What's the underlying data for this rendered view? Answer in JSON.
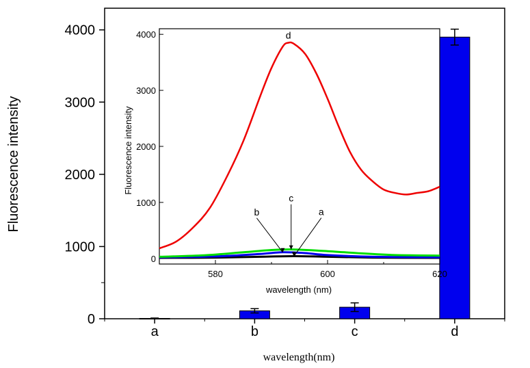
{
  "chart_data": [
    {
      "type": "bar",
      "categories": [
        "a",
        "b",
        "c",
        "d"
      ],
      "values": [
        5,
        110,
        160,
        3900
      ],
      "errors": [
        5,
        30,
        60,
        110
      ],
      "xlabel": "wavelength(nm)",
      "ylabel": "Fluorescence intensity",
      "ylim": [
        0,
        4300
      ],
      "yticks": [
        0,
        1000,
        2000,
        3000,
        4000
      ],
      "grid": false,
      "colors": {
        "bar": "#0000ee",
        "edge": "#000000"
      }
    },
    {
      "type": "line",
      "xlabel": "wavelength (nm)",
      "ylabel": "Fluorescence intensity",
      "xlim": [
        570,
        620
      ],
      "ylim": [
        -100,
        4100
      ],
      "xticks": [
        580,
        600,
        620
      ],
      "yticks": [
        0,
        1000,
        2000,
        3000,
        4000
      ],
      "grid": false,
      "series": [
        {
          "name": "a",
          "color": "#000000",
          "x": [
            570,
            580,
            588,
            594,
            600,
            608,
            620
          ],
          "y": [
            10,
            15,
            30,
            40,
            30,
            15,
            10
          ]
        },
        {
          "name": "b",
          "color": "#0000ee",
          "x": [
            570,
            580,
            588,
            592,
            596,
            600,
            608,
            620
          ],
          "y": [
            20,
            35,
            80,
            110,
            95,
            60,
            30,
            20
          ]
        },
        {
          "name": "c",
          "color": "#00dd00",
          "x": [
            570,
            578,
            585,
            590,
            594,
            600,
            606,
            612,
            620
          ],
          "y": [
            30,
            55,
            110,
            150,
            160,
            130,
            90,
            60,
            50
          ]
        },
        {
          "name": "d",
          "color": "#ee0000",
          "x": [
            570,
            573,
            576,
            579,
            582,
            585,
            588,
            590,
            592,
            593,
            594,
            596,
            598,
            600,
            602,
            604,
            606,
            608,
            610,
            612,
            614,
            616,
            618,
            620
          ],
          "y": [
            180,
            300,
            550,
            900,
            1450,
            2100,
            2900,
            3400,
            3780,
            3850,
            3830,
            3650,
            3300,
            2850,
            2350,
            1900,
            1580,
            1380,
            1230,
            1170,
            1140,
            1170,
            1200,
            1280
          ]
        }
      ],
      "annotations": [
        {
          "label": "d",
          "x": 593,
          "y": 3850
        },
        {
          "label": "b",
          "x": 592,
          "y": 110
        },
        {
          "label": "c",
          "x": 593.5,
          "y": 160
        },
        {
          "label": "a",
          "x": 594,
          "y": 40
        }
      ]
    }
  ]
}
